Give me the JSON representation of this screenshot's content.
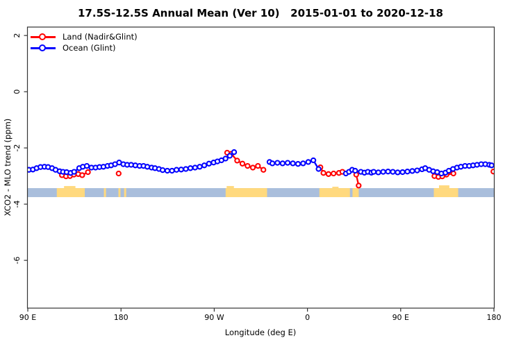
{
  "title": "17.5S-12.5S Annual Mean (Ver 10)   2015-01-01 to 2020-12-18",
  "chart_data": {
    "type": "line",
    "title": "17.5S-12.5S Annual Mean (Ver 10)   2015-01-01 to 2020-12-18",
    "xlabel": "Longitude (deg E)",
    "ylabel": "XCO2 - MLO trend (ppm)",
    "xlim": [
      90,
      540
    ],
    "ylim": [
      -7.7,
      2.3
    ],
    "grid": false,
    "legend_position": "top-left",
    "x_ticks": [
      {
        "lon": 90,
        "label": "90 E"
      },
      {
        "lon": 180,
        "label": "180"
      },
      {
        "lon": 270,
        "label": "90 W"
      },
      {
        "lon": 360,
        "label": "0"
      },
      {
        "lon": 450,
        "label": "90 E"
      },
      {
        "lon": 540,
        "label": "180"
      }
    ],
    "y_ticks": [
      {
        "value": 2,
        "label": "2"
      },
      {
        "value": 0,
        "label": "0"
      },
      {
        "value": -2,
        "label": "-2"
      },
      {
        "value": -4,
        "label": "-4"
      },
      {
        "value": -6,
        "label": "-6"
      }
    ],
    "legend": [
      {
        "name": "Land (Nadir&Glint)",
        "color": "#ff0000"
      },
      {
        "name": "Ocean (Glint)",
        "color": "#0000ff"
      }
    ],
    "map_strip": {
      "description": "latitude-band map: ocean blue strip with tan land patches",
      "ocean_color": "#a9bedc",
      "land_color": "#ffd97e",
      "y_top_ppm": -3.43,
      "y_bottom_ppm": -3.75,
      "land_patches_lon": [
        [
          118,
          145
        ],
        [
          163.5,
          165.5
        ],
        [
          177.5,
          179.5
        ],
        [
          183,
          185
        ],
        [
          281,
          321
        ],
        [
          371.5,
          401
        ],
        [
          403.5,
          409.5
        ],
        [
          482,
          505.5
        ]
      ],
      "land_bumps_lon": [
        {
          "range": [
            125,
            136
          ],
          "h": 3
        },
        {
          "range": [
            282,
            289
          ],
          "h": 3
        },
        {
          "range": [
            384,
            390
          ],
          "h": 2
        },
        {
          "range": [
            487,
            497
          ],
          "h": 4
        }
      ]
    },
    "series": [
      {
        "name": "Land (Nadir&Glint)",
        "color": "#ff0000",
        "points": [
          [
            123.0,
            -2.97
          ],
          [
            126.9,
            -3.01
          ],
          [
            130.7,
            -3.0
          ],
          [
            134.5,
            -2.95
          ],
          [
            138.7,
            -2.93
          ],
          [
            142.5,
            -2.97
          ],
          [
            148.1,
            -2.86
          ],
          [
            177.7,
            -2.91
          ],
          [
            282.5,
            -2.17
          ],
          [
            286.5,
            -2.21
          ],
          [
            292.1,
            -2.45
          ],
          [
            297.2,
            -2.56
          ],
          [
            302.2,
            -2.64
          ],
          [
            307.3,
            -2.7
          ],
          [
            312.2,
            -2.64
          ],
          [
            317.5,
            -2.78
          ],
          [
            372.5,
            -2.69
          ],
          [
            375.4,
            -2.89
          ],
          [
            380.3,
            -2.93
          ],
          [
            385.2,
            -2.91
          ],
          [
            390.4,
            -2.89
          ],
          [
            393.7,
            -2.85
          ],
          [
            407.1,
            -2.95
          ],
          [
            409.4,
            -3.34
          ],
          [
            482.6,
            -3.0
          ],
          [
            486.4,
            -3.03
          ],
          [
            490.2,
            -3.01
          ],
          [
            494.2,
            -2.95
          ],
          [
            500.9,
            -2.91
          ],
          [
            539.5,
            -2.84
          ]
        ]
      },
      {
        "name": "Ocean (Glint)",
        "color": "#0000ff",
        "points": [
          [
            91.1,
            -2.78
          ],
          [
            94.9,
            -2.77
          ],
          [
            98.5,
            -2.72
          ],
          [
            102.3,
            -2.68
          ],
          [
            106.1,
            -2.67
          ],
          [
            109.6,
            -2.68
          ],
          [
            113.4,
            -2.72
          ],
          [
            116.8,
            -2.78
          ],
          [
            120.8,
            -2.83
          ],
          [
            124.0,
            -2.85
          ],
          [
            127.5,
            -2.86
          ],
          [
            131.3,
            -2.89
          ],
          [
            134.7,
            -2.85
          ],
          [
            139.6,
            -2.72
          ],
          [
            143.1,
            -2.67
          ],
          [
            147.0,
            -2.64
          ],
          [
            151.4,
            -2.7
          ],
          [
            155.4,
            -2.7
          ],
          [
            159.2,
            -2.68
          ],
          [
            163.0,
            -2.67
          ],
          [
            167.0,
            -2.64
          ],
          [
            170.4,
            -2.62
          ],
          [
            174.2,
            -2.58
          ],
          [
            178.2,
            -2.52
          ],
          [
            182.2,
            -2.58
          ],
          [
            186.0,
            -2.6
          ],
          [
            189.8,
            -2.6
          ],
          [
            193.8,
            -2.62
          ],
          [
            197.9,
            -2.64
          ],
          [
            201.7,
            -2.64
          ],
          [
            205.4,
            -2.67
          ],
          [
            209.5,
            -2.7
          ],
          [
            212.8,
            -2.72
          ],
          [
            216.6,
            -2.75
          ],
          [
            220.2,
            -2.79
          ],
          [
            224.7,
            -2.81
          ],
          [
            229.2,
            -2.81
          ],
          [
            233.6,
            -2.78
          ],
          [
            238.1,
            -2.77
          ],
          [
            242.6,
            -2.75
          ],
          [
            247.0,
            -2.72
          ],
          [
            251.5,
            -2.7
          ],
          [
            256.0,
            -2.67
          ],
          [
            260.4,
            -2.62
          ],
          [
            264.9,
            -2.56
          ],
          [
            269.4,
            -2.52
          ],
          [
            273.1,
            -2.48
          ],
          [
            277.0,
            -2.44
          ],
          [
            280.9,
            -2.38
          ],
          [
            285.0,
            -2.28
          ],
          [
            289.2,
            -2.15
          ],
          [
            323.4,
            -2.5
          ],
          [
            326.1,
            -2.55
          ],
          [
            331.0,
            -2.53
          ],
          [
            336.0,
            -2.55
          ],
          [
            340.9,
            -2.53
          ],
          [
            345.9,
            -2.55
          ],
          [
            350.9,
            -2.57
          ],
          [
            355.8,
            -2.55
          ],
          [
            360.8,
            -2.5
          ],
          [
            365.7,
            -2.44
          ],
          [
            370.7,
            -2.75
          ],
          [
            397.1,
            -2.91
          ],
          [
            400.1,
            -2.85
          ],
          [
            403.1,
            -2.78
          ],
          [
            406.1,
            -2.81
          ],
          [
            411.6,
            -2.85
          ],
          [
            415.0,
            -2.88
          ],
          [
            418.3,
            -2.85
          ],
          [
            421.7,
            -2.88
          ],
          [
            423.9,
            -2.85
          ],
          [
            428.4,
            -2.87
          ],
          [
            433.1,
            -2.85
          ],
          [
            437.8,
            -2.84
          ],
          [
            442.4,
            -2.85
          ],
          [
            447.1,
            -2.87
          ],
          [
            451.8,
            -2.86
          ],
          [
            456.5,
            -2.84
          ],
          [
            461.2,
            -2.82
          ],
          [
            465.9,
            -2.8
          ],
          [
            470.6,
            -2.76
          ],
          [
            473.7,
            -2.72
          ],
          [
            477.5,
            -2.78
          ],
          [
            481.3,
            -2.83
          ],
          [
            485.3,
            -2.86
          ],
          [
            489.3,
            -2.91
          ],
          [
            493.2,
            -2.88
          ],
          [
            496.5,
            -2.81
          ],
          [
            500.5,
            -2.75
          ],
          [
            504.3,
            -2.7
          ],
          [
            508.1,
            -2.67
          ],
          [
            512.1,
            -2.64
          ],
          [
            516.1,
            -2.64
          ],
          [
            519.9,
            -2.62
          ],
          [
            523.7,
            -2.6
          ],
          [
            527.7,
            -2.58
          ],
          [
            531.7,
            -2.58
          ],
          [
            535.5,
            -2.6
          ],
          [
            537.8,
            -2.62
          ]
        ]
      }
    ]
  }
}
